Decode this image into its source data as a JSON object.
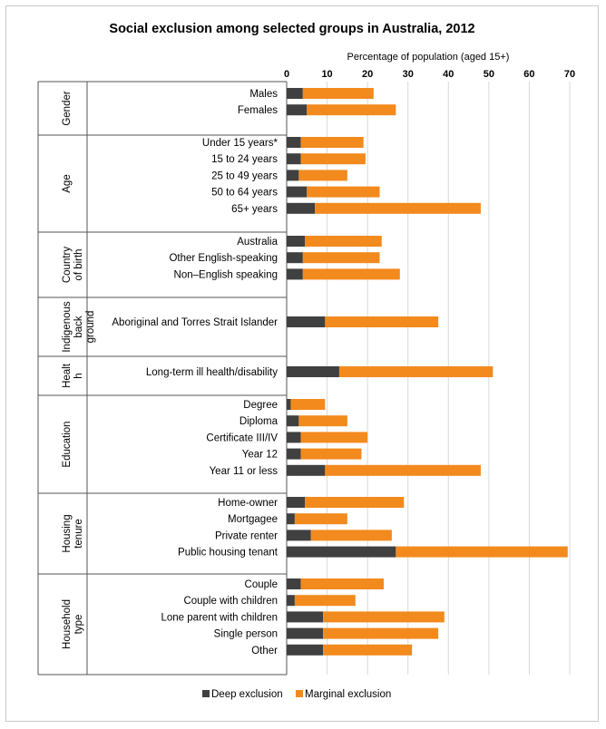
{
  "chart_data": {
    "type": "bar",
    "orientation": "horizontal",
    "stacked": true,
    "title": "Social exclusion among selected groups in Australia, 2012",
    "xlabel": "Percentage of population (aged  15+)",
    "xlim": [
      0,
      70
    ],
    "xticks": [
      "0",
      "10",
      "20",
      "30",
      "40",
      "50",
      "60",
      "70"
    ],
    "grid": true,
    "legend_position": "bottom",
    "colors": {
      "deep": "#404040",
      "marginal": "#f28a1e"
    },
    "series": [
      {
        "name": "Deep exclusion",
        "key": "deep"
      },
      {
        "name": "Marginal exclusion",
        "key": "marginal"
      }
    ],
    "groups": [
      {
        "label": [
          "Gender"
        ],
        "rows": [
          {
            "category": "Males",
            "deep": 4,
            "marginal": 17.5
          },
          {
            "category": "Females",
            "deep": 5,
            "marginal": 22
          }
        ]
      },
      {
        "label": [
          "Age"
        ],
        "rows": [
          {
            "category": "Under 15 years*",
            "deep": 3.5,
            "marginal": 15.5
          },
          {
            "category": "15 to 24 years",
            "deep": 3.5,
            "marginal": 16
          },
          {
            "category": "25 to 49 years",
            "deep": 3,
            "marginal": 12
          },
          {
            "category": "50 to 64 years",
            "deep": 5,
            "marginal": 18
          },
          {
            "category": "65+ years",
            "deep": 7,
            "marginal": 41
          }
        ]
      },
      {
        "label": [
          "Country",
          "of birth"
        ],
        "rows": [
          {
            "category": "Australia",
            "deep": 4.5,
            "marginal": 19
          },
          {
            "category": "Other English-speaking",
            "deep": 4,
            "marginal": 19
          },
          {
            "category": "Non–English speaking",
            "deep": 4,
            "marginal": 24
          }
        ]
      },
      {
        "label": [
          "Indigenous",
          "back",
          "ground"
        ],
        "rows": [
          {
            "category": "Aboriginal and Torres Strait Islander",
            "deep": 9.5,
            "marginal": 28
          }
        ]
      },
      {
        "label": [
          "Healt",
          "h"
        ],
        "rows": [
          {
            "category": "Long-term ill health/disability",
            "deep": 13,
            "marginal": 38
          }
        ]
      },
      {
        "label": [
          "Education"
        ],
        "rows": [
          {
            "category": "Degree",
            "deep": 1,
            "marginal": 8.5
          },
          {
            "category": "Diploma",
            "deep": 3,
            "marginal": 12
          },
          {
            "category": "Certificate III/IV",
            "deep": 3.5,
            "marginal": 16.5
          },
          {
            "category": "Year 12",
            "deep": 3.5,
            "marginal": 15
          },
          {
            "category": "Year 11 or less",
            "deep": 9.5,
            "marginal": 38.5
          }
        ]
      },
      {
        "label": [
          "Housing",
          "tenure"
        ],
        "rows": [
          {
            "category": "Home-owner",
            "deep": 4.5,
            "marginal": 24.5
          },
          {
            "category": "Mortgagee",
            "deep": 2,
            "marginal": 13
          },
          {
            "category": "Private renter",
            "deep": 6,
            "marginal": 20
          },
          {
            "category": "Public housing tenant",
            "deep": 27,
            "marginal": 42.5
          }
        ]
      },
      {
        "label": [
          "Household",
          "type"
        ],
        "rows": [
          {
            "category": "Couple",
            "deep": 3.5,
            "marginal": 20.5
          },
          {
            "category": "Couple with children",
            "deep": 2,
            "marginal": 15
          },
          {
            "category": "Lone parent with children",
            "deep": 9,
            "marginal": 30
          },
          {
            "category": "Single person",
            "deep": 9,
            "marginal": 28.5
          },
          {
            "category": "Other",
            "deep": 9,
            "marginal": 22
          }
        ]
      }
    ]
  }
}
